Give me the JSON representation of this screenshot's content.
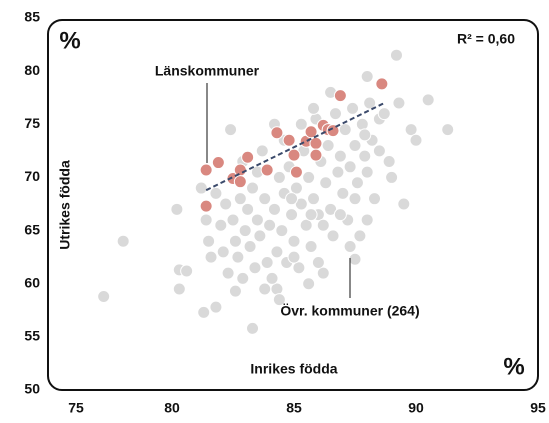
{
  "chart_data": {
    "type": "scatter",
    "title_corner": "%",
    "x_unit": "%",
    "xlabel": "Inrikes födda",
    "ylabel": "Utrikes födda",
    "annotation": "R² = 0,60",
    "xlim": [
      75,
      95
    ],
    "xticks": [
      75,
      80,
      85,
      90,
      95
    ],
    "ylim": [
      50,
      85
    ],
    "yticks": [
      50,
      55,
      60,
      65,
      70,
      75,
      80,
      85
    ],
    "series": [
      {
        "name": "Övr. kommuner (264)",
        "color": "#d9d9d9",
        "points": [
          [
            77.2,
            58.8
          ],
          [
            78,
            64
          ],
          [
            80.2,
            67
          ],
          [
            80.3,
            61.3
          ],
          [
            80.3,
            59.5
          ],
          [
            80.6,
            61.2
          ],
          [
            81.3,
            57.3
          ],
          [
            81.8,
            57.8
          ],
          [
            83.3,
            55.8
          ],
          [
            82.6,
            59.3
          ],
          [
            84.3,
            59.5
          ],
          [
            87.5,
            62.3
          ],
          [
            89.2,
            81.5
          ],
          [
            91.3,
            74.5
          ],
          [
            90.5,
            77.3
          ],
          [
            89.8,
            74.5
          ],
          [
            89.3,
            77
          ],
          [
            88,
            79.5
          ],
          [
            88.5,
            75.5
          ],
          [
            87.5,
            68
          ],
          [
            88,
            66
          ],
          [
            89,
            70
          ],
          [
            89.5,
            67.5
          ],
          [
            90,
            73.5
          ],
          [
            81.2,
            69
          ],
          [
            81.4,
            66
          ],
          [
            81.5,
            64
          ],
          [
            81.6,
            62.5
          ],
          [
            81.8,
            68.5
          ],
          [
            82,
            65.5
          ],
          [
            82.1,
            63
          ],
          [
            82.2,
            67.5
          ],
          [
            82.3,
            61
          ],
          [
            82.4,
            74.5
          ],
          [
            82.5,
            66
          ],
          [
            82.6,
            64
          ],
          [
            82.7,
            62.5
          ],
          [
            82.8,
            68
          ],
          [
            82.9,
            60.5
          ],
          [
            83,
            65
          ],
          [
            83.1,
            67
          ],
          [
            83.2,
            63.5
          ],
          [
            83.3,
            69
          ],
          [
            83.4,
            61.5
          ],
          [
            83.5,
            66
          ],
          [
            83.6,
            64.5
          ],
          [
            83.7,
            72.5
          ],
          [
            83.8,
            68
          ],
          [
            83.9,
            62
          ],
          [
            84,
            65.5
          ],
          [
            84.1,
            60.5
          ],
          [
            84.2,
            67
          ],
          [
            84.3,
            63
          ],
          [
            84.4,
            70
          ],
          [
            84.5,
            65
          ],
          [
            84.6,
            68.5
          ],
          [
            84.7,
            62
          ],
          [
            84.8,
            71
          ],
          [
            84.9,
            66.5
          ],
          [
            85,
            64
          ],
          [
            85.1,
            69
          ],
          [
            85.2,
            61.5
          ],
          [
            85.3,
            67.5
          ],
          [
            85.4,
            72.5
          ],
          [
            85.5,
            65.5
          ],
          [
            85.6,
            70
          ],
          [
            85.7,
            63.5
          ],
          [
            85.8,
            68
          ],
          [
            85.9,
            75.5
          ],
          [
            86,
            66.5
          ],
          [
            86.1,
            71.5
          ],
          [
            86.2,
            61
          ],
          [
            86.3,
            69.5
          ],
          [
            86.4,
            73
          ],
          [
            86.5,
            67
          ],
          [
            86.6,
            64.5
          ],
          [
            86.7,
            76
          ],
          [
            86.8,
            70.5
          ],
          [
            86.9,
            72
          ],
          [
            87,
            68.5
          ],
          [
            87.1,
            74.5
          ],
          [
            87.2,
            66
          ],
          [
            87.3,
            71
          ],
          [
            87.4,
            76.5
          ],
          [
            87.5,
            73
          ],
          [
            87.6,
            69.5
          ],
          [
            87.7,
            64.5
          ],
          [
            87.8,
            75
          ],
          [
            87.9,
            72
          ],
          [
            88,
            70.5
          ],
          [
            88.1,
            77
          ],
          [
            88.2,
            73.5
          ],
          [
            88.3,
            68
          ],
          [
            88.5,
            72.5
          ],
          [
            88.7,
            76
          ],
          [
            88.9,
            71.5
          ],
          [
            85.8,
            76.5
          ],
          [
            85.3,
            75
          ],
          [
            84.6,
            73.5
          ],
          [
            84.2,
            75
          ],
          [
            83.5,
            70.5
          ],
          [
            82.9,
            71.5
          ],
          [
            86.5,
            78
          ],
          [
            87.9,
            74
          ],
          [
            86.2,
            65.5
          ],
          [
            85,
            62.5
          ],
          [
            84.4,
            58.5
          ],
          [
            83.8,
            59.5
          ],
          [
            85.6,
            60
          ],
          [
            86,
            62
          ],
          [
            84.9,
            68
          ],
          [
            85.7,
            66.5
          ],
          [
            86.9,
            66.5
          ],
          [
            87.3,
            63.5
          ]
        ]
      },
      {
        "name": "Länskommuner",
        "color": "#d98880",
        "points": [
          [
            81.4,
            70.7
          ],
          [
            81.9,
            71.4
          ],
          [
            81.4,
            67.3
          ],
          [
            83.1,
            71.9
          ],
          [
            82.5,
            69.9
          ],
          [
            82.8,
            70.7
          ],
          [
            82.8,
            69.6
          ],
          [
            83.9,
            70.7
          ],
          [
            84.3,
            74.2
          ],
          [
            84.8,
            73.5
          ],
          [
            85.0,
            72.1
          ],
          [
            85.1,
            70.5
          ],
          [
            85.5,
            73.4
          ],
          [
            85.7,
            74.3
          ],
          [
            85.9,
            73.2
          ],
          [
            85.9,
            72.1
          ],
          [
            86.2,
            74.9
          ],
          [
            86.4,
            74.5
          ],
          [
            86.6,
            74.4
          ],
          [
            86.9,
            77.7
          ],
          [
            88.6,
            78.8
          ]
        ]
      }
    ],
    "trendline": {
      "color": "#3b4a6b",
      "x": [
        81.4,
        88.7
      ],
      "y": [
        68.8,
        77.0
      ]
    }
  }
}
